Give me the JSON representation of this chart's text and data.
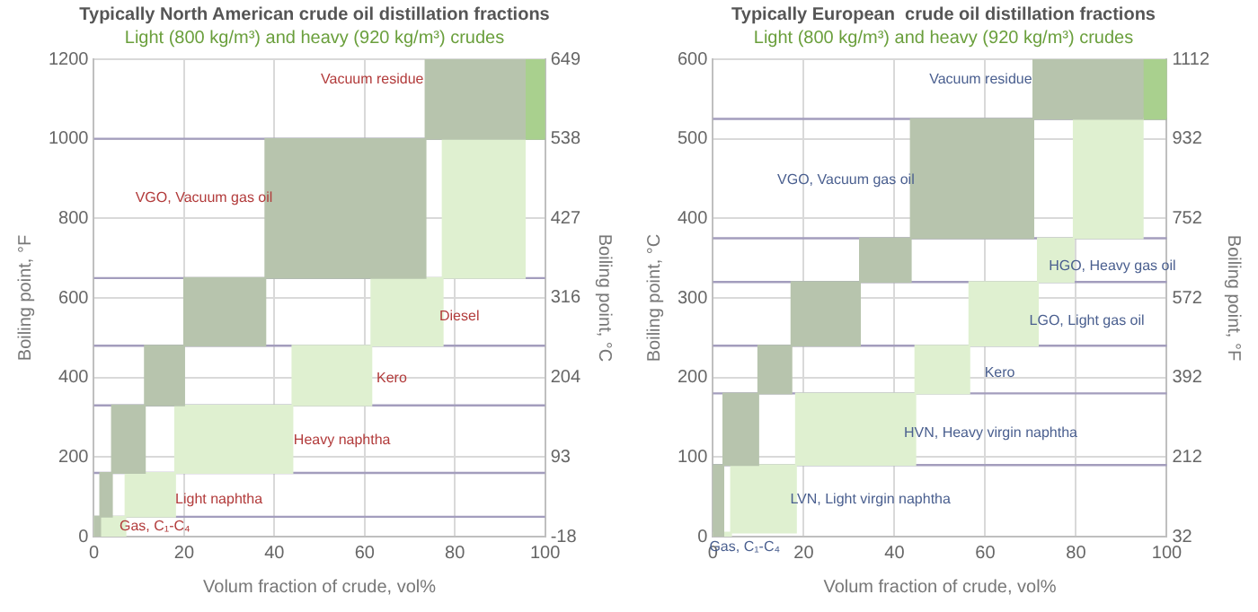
{
  "chart_data": [
    {
      "type": "area",
      "title": "Typically North American crude oil distillation fractions",
      "subtitle": "Light (800 kg/m³) and heavy (920 kg/m³) crudes",
      "xlabel": "Volum fraction of crude, vol%",
      "ylabel": "Boiling point, °F",
      "y2label": "Boiling point, °C",
      "xlim": [
        0,
        100
      ],
      "xticks": [
        0,
        20,
        40,
        60,
        80,
        100
      ],
      "ylim": [
        0,
        1200
      ],
      "yticks": [
        0,
        200,
        400,
        600,
        800,
        1000,
        1200
      ],
      "y2lim": [
        -18,
        649
      ],
      "y2ticks": [
        -18,
        93,
        204,
        316,
        427,
        538,
        649
      ],
      "grid": true,
      "legend": false,
      "series": [
        {
          "color": "#b7c4ad",
          "x": [
            0,
            0,
            1.4,
            1.4,
            0
          ],
          "values": [
            0,
            50,
            50,
            0,
            0
          ]
        },
        {
          "color": "#b7c4ad",
          "x": [
            1.4,
            1.4,
            4,
            4,
            1.4
          ],
          "values": [
            50,
            160,
            160,
            50,
            50
          ]
        },
        {
          "color": "#b7c4ad",
          "x": [
            4,
            4,
            11.3,
            11.3,
            4
          ],
          "values": [
            160,
            330,
            330,
            160,
            160
          ]
        },
        {
          "color": "#b7c4ad",
          "x": [
            11.3,
            11.3,
            20,
            20,
            11.3
          ],
          "values": [
            330,
            480,
            480,
            330,
            330
          ]
        },
        {
          "color": "#b7c4ad",
          "x": [
            20,
            20,
            38,
            38,
            20
          ],
          "values": [
            480,
            650,
            650,
            480,
            480
          ]
        },
        {
          "color": "#b7c4ad",
          "x": [
            38,
            38,
            73.5,
            73.5,
            38
          ],
          "values": [
            650,
            1000,
            1000,
            650,
            650
          ]
        },
        {
          "color": "#b7c4ad",
          "x": [
            73.5,
            73.5,
            95.5,
            95.5,
            73.5
          ],
          "values": [
            1000,
            1200,
            1200,
            1000,
            1000
          ]
        },
        {
          "color": "#dff0d0",
          "x": [
            0,
            0,
            7,
            7,
            0
          ],
          "values": [
            0,
            50,
            50,
            0,
            0
          ]
        },
        {
          "color": "#dff0d0",
          "x": [
            7,
            7,
            18,
            18,
            7
          ],
          "values": [
            50,
            160,
            160,
            50,
            50
          ]
        },
        {
          "color": "#dff0d0",
          "x": [
            18,
            18,
            44,
            44,
            18
          ],
          "values": [
            160,
            330,
            330,
            160,
            160
          ]
        },
        {
          "color": "#dff0d0",
          "x": [
            44,
            44,
            61.5,
            61.5,
            44
          ],
          "values": [
            330,
            480,
            480,
            330,
            330
          ]
        },
        {
          "color": "#dff0d0",
          "x": [
            61.5,
            61.5,
            77.3,
            77.3,
            61.5
          ],
          "values": [
            480,
            650,
            650,
            480,
            480
          ]
        },
        {
          "color": "#dff0d0",
          "x": [
            77.3,
            77.3,
            95.5,
            95.5,
            77.3
          ],
          "values": [
            650,
            1000,
            1000,
            650,
            650
          ]
        },
        {
          "color": "#a9d08e",
          "x": [
            95.5,
            95.5,
            100,
            100,
            95.5
          ],
          "values": [
            1000,
            1200,
            1200,
            1000,
            1000
          ]
        }
      ],
      "ref_lines": [
        {
          "axis": "y",
          "value": 50,
          "color": "#a39dbd"
        },
        {
          "axis": "y",
          "value": 160,
          "color": "#a39dbd"
        },
        {
          "axis": "y",
          "value": 330,
          "color": "#a39dbd"
        },
        {
          "axis": "y",
          "value": 480,
          "color": "#a39dbd"
        },
        {
          "axis": "y",
          "value": 650,
          "color": "#a39dbd"
        },
        {
          "axis": "y",
          "value": 1000,
          "color": "#a39dbd"
        }
      ],
      "annotations": [
        "Vacuum residue",
        "VGO, Vacuum gas oil",
        "Diesel",
        "Kero",
        "Heavy naphtha",
        "Light naphtha",
        "Gas, C₁-C₄"
      ]
    },
    {
      "type": "area",
      "title": "Typically European  crude oil distillation fractions",
      "subtitle": "Light (800 kg/m³) and heavy (920 kg/m³) crudes",
      "xlabel": "Volum fraction of crude, vol%",
      "ylabel": "Boiling point, °C",
      "y2label": "Boiling point, °F",
      "xlim": [
        0,
        100
      ],
      "xticks": [
        0,
        20,
        40,
        60,
        80,
        100
      ],
      "ylim": [
        0,
        600
      ],
      "yticks": [
        0,
        100,
        200,
        300,
        400,
        500,
        600
      ],
      "y2lim": [
        32,
        1112
      ],
      "y2ticks": [
        32,
        212,
        392,
        572,
        752,
        932,
        1112
      ],
      "grid": true,
      "legend": false,
      "series": [
        {
          "color": "#b7c4ad",
          "x": [
            0,
            0,
            2.3,
            2.3,
            0
          ],
          "values": [
            0,
            90,
            90,
            0,
            0
          ]
        },
        {
          "color": "#b7c4ad",
          "x": [
            2.3,
            2.3,
            10,
            10,
            2.3
          ],
          "values": [
            90,
            180,
            180,
            90,
            90
          ]
        },
        {
          "color": "#b7c4ad",
          "x": [
            10,
            10,
            17.3,
            17.3,
            10
          ],
          "values": [
            180,
            240,
            240,
            180,
            180
          ]
        },
        {
          "color": "#b7c4ad",
          "x": [
            17.3,
            17.3,
            32.4,
            32.4,
            17.3
          ],
          "values": [
            240,
            320,
            320,
            240,
            240
          ]
        },
        {
          "color": "#b7c4ad",
          "x": [
            32.4,
            32.4,
            43.6,
            43.6,
            32.4
          ],
          "values": [
            320,
            375,
            375,
            320,
            320
          ]
        },
        {
          "color": "#b7c4ad",
          "x": [
            43.6,
            43.6,
            70.6,
            70.6,
            43.6
          ],
          "values": [
            375,
            525,
            525,
            375,
            375
          ]
        },
        {
          "color": "#b7c4ad",
          "x": [
            70.6,
            70.6,
            94.7,
            94.7,
            70.6
          ],
          "values": [
            525,
            600,
            600,
            525,
            525
          ]
        },
        {
          "color": "#dff0d0",
          "x": [
            0,
            0,
            4,
            4,
            0
          ],
          "values": [
            0,
            5,
            5,
            0,
            0
          ]
        },
        {
          "color": "#dff0d0",
          "x": [
            4,
            4,
            18.3,
            18.3,
            4
          ],
          "values": [
            5,
            90,
            90,
            5,
            5
          ]
        },
        {
          "color": "#dff0d0",
          "x": [
            18.3,
            18.3,
            44.6,
            44.6,
            18.3
          ],
          "values": [
            90,
            180,
            180,
            90,
            90
          ]
        },
        {
          "color": "#dff0d0",
          "x": [
            44.6,
            44.6,
            56.5,
            56.5,
            44.6
          ],
          "values": [
            180,
            240,
            240,
            180,
            180
          ]
        },
        {
          "color": "#dff0d0",
          "x": [
            56.5,
            56.5,
            71.6,
            71.6,
            56.5
          ],
          "values": [
            240,
            320,
            320,
            240,
            240
          ]
        },
        {
          "color": "#dff0d0",
          "x": [
            71.6,
            71.6,
            79.5,
            79.5,
            71.6
          ],
          "values": [
            320,
            375,
            375,
            320,
            320
          ]
        },
        {
          "color": "#dff0d0",
          "x": [
            79.5,
            79.5,
            94.7,
            94.7,
            79.5
          ],
          "values": [
            375,
            525,
            525,
            375,
            375
          ]
        },
        {
          "color": "#a9d08e",
          "x": [
            94.7,
            94.7,
            100,
            100,
            94.7
          ],
          "values": [
            525,
            600,
            600,
            525,
            525
          ]
        }
      ],
      "ref_lines": [
        {
          "axis": "y",
          "value": 90,
          "color": "#a39dbd"
        },
        {
          "axis": "y",
          "value": 180,
          "color": "#a39dbd"
        },
        {
          "axis": "y",
          "value": 240,
          "color": "#a39dbd"
        },
        {
          "axis": "y",
          "value": 320,
          "color": "#a39dbd"
        },
        {
          "axis": "y",
          "value": 375,
          "color": "#a39dbd"
        },
        {
          "axis": "y",
          "value": 525,
          "color": "#a39dbd"
        }
      ],
      "annotations": [
        "Vacuum residue",
        "VGO, Vacuum gas oil",
        "HGO, Heavy gas oil",
        "LGO, Light gas oil",
        "Kero",
        "HVN, Heavy virgin naphtha",
        "LVN, Light virgin naphtha",
        {
          "text": "Gas, C₁-C₄",
          "x": 7,
          "y": 0
        }
      ]
    }
  ]
}
